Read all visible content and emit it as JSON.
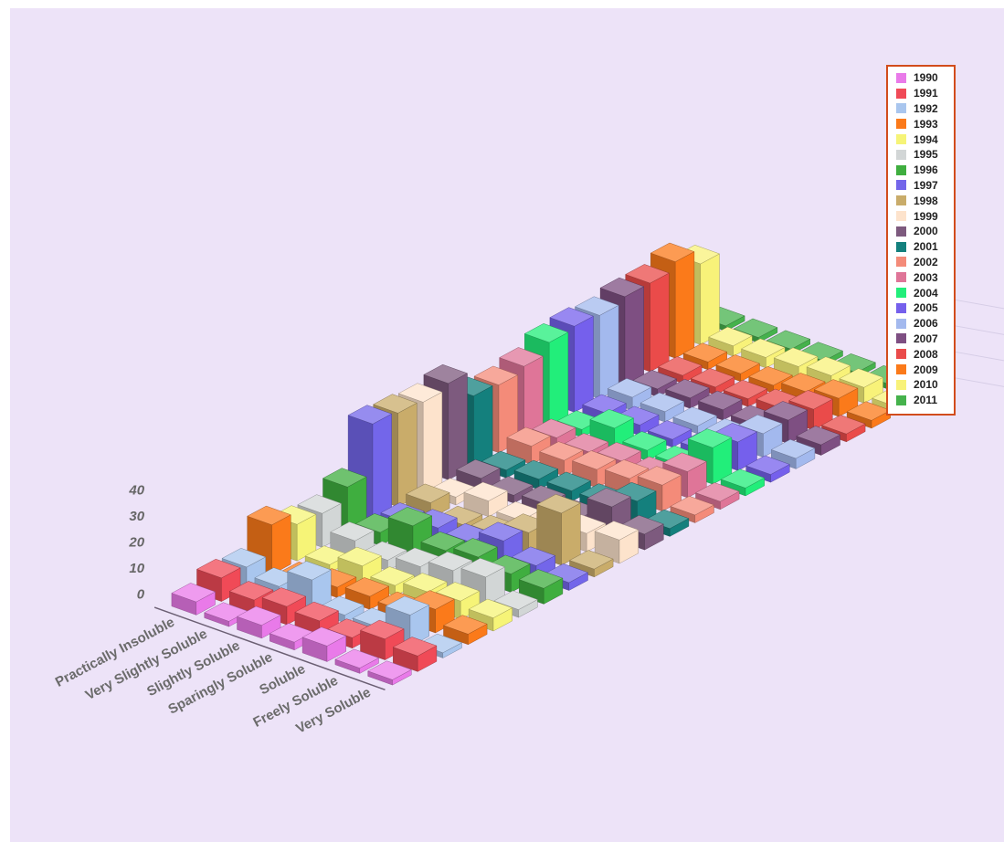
{
  "chart_data": {
    "type": "bar",
    "title": "",
    "xlabel": "",
    "ylabel": "",
    "zlim": [
      0,
      40
    ],
    "z_ticks": [
      "0",
      "10",
      "20",
      "30",
      "40"
    ],
    "categories": [
      "Practically Insoluble",
      "Very Slightly Soluble",
      "Slightly Soluble",
      "Sparingly Soluble",
      "Soluble",
      "Freely Soluble",
      "Very Soluble"
    ],
    "legend_position": "top-right",
    "grid": false,
    "series": [
      {
        "name": "1990",
        "color": "#e97ae9",
        "values": [
          5,
          2,
          5,
          3,
          6,
          2,
          2
        ]
      },
      {
        "name": "1991",
        "color": "#f04a57",
        "values": [
          9,
          5,
          7,
          6,
          4,
          8,
          6
        ]
      },
      {
        "name": "1992",
        "color": "#a9c6ee",
        "values": [
          8,
          5,
          12,
          3,
          3,
          12,
          2
        ]
      },
      {
        "name": "1993",
        "color": "#fb7a1a",
        "values": [
          19,
          2,
          4,
          5,
          4,
          9,
          4
        ]
      },
      {
        "name": "1994",
        "color": "#f6f477",
        "values": [
          14,
          3,
          7,
          4,
          6,
          7,
          5
        ]
      },
      {
        "name": "1995",
        "color": "#d2d6d6",
        "values": [
          13,
          7,
          4,
          6,
          9,
          11,
          3
        ]
      },
      {
        "name": "1996",
        "color": "#3fae3f",
        "values": [
          18,
          5,
          12,
          7,
          9,
          7,
          6
        ]
      },
      {
        "name": "1997",
        "color": "#7366ea",
        "values": [
          37,
          4,
          6,
          5,
          10,
          5,
          3
        ]
      },
      {
        "name": "1998",
        "color": "#c9ac6a",
        "values": [
          36,
          6,
          2,
          3,
          8,
          20,
          3
        ]
      },
      {
        "name": "1999",
        "color": "#fde3cc",
        "values": [
          35,
          3,
          6,
          3,
          3,
          7,
          9
        ]
      },
      {
        "name": "2000",
        "color": "#7d5a7e",
        "values": [
          37,
          5,
          3,
          4,
          3,
          12,
          6
        ]
      },
      {
        "name": "2001",
        "color": "#14807d",
        "values": [
          27,
          3,
          4,
          4,
          4,
          9,
          3
        ]
      },
      {
        "name": "2002",
        "color": "#f48b79",
        "values": [
          26,
          7,
          6,
          7,
          8,
          10,
          3
        ]
      },
      {
        "name": "2003",
        "color": "#df7598",
        "values": [
          28,
          5,
          4,
          5,
          4,
          10,
          3
        ]
      },
      {
        "name": "2004",
        "color": "#22ee7a",
        "values": [
          32,
          3,
          8,
          4,
          3,
          14,
          3
        ]
      },
      {
        "name": "2005",
        "color": "#7560ec",
        "values": [
          33,
          4,
          4,
          3,
          3,
          11,
          3
        ]
      },
      {
        "name": "2006",
        "color": "#a3b9ee",
        "values": [
          32,
          5,
          4,
          3,
          3,
          9,
          4
        ]
      },
      {
        "name": "2007",
        "color": "#7e4f82",
        "values": [
          34,
          3,
          4,
          4,
          3,
          9,
          4
        ]
      },
      {
        "name": "2008",
        "color": "#ea4b4a",
        "values": [
          34,
          3,
          3,
          3,
          4,
          8,
          3
        ]
      },
      {
        "name": "2009",
        "color": "#fb7a1a",
        "values": [
          37,
          3,
          3,
          3,
          5,
          7,
          3
        ]
      },
      {
        "name": "2010",
        "color": "#f8f279",
        "values": [
          31,
          4,
          4,
          5,
          6,
          6,
          3
        ]
      },
      {
        "name": "2011",
        "color": "#45b24c",
        "values": [
          2,
          2,
          2,
          2,
          2,
          2,
          1
        ]
      }
    ]
  }
}
